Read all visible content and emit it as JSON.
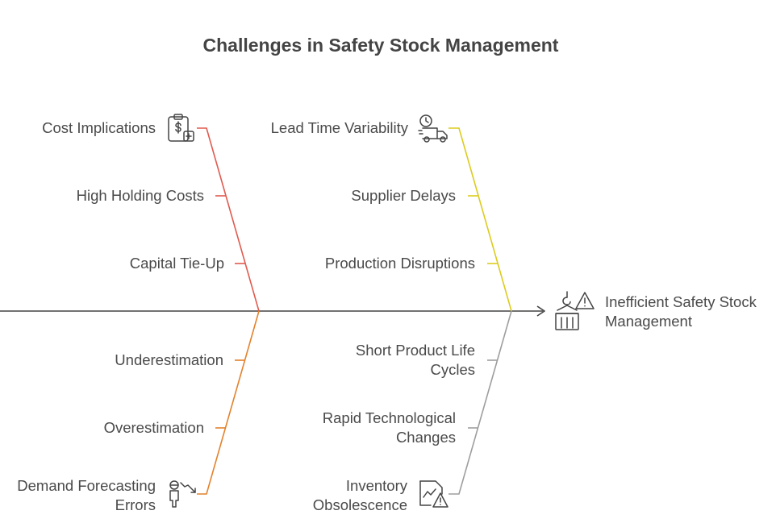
{
  "title": "Challenges in Safety Stock Management",
  "effect": {
    "line1": "Inefficient Safety Stock",
    "line2": "Management",
    "icon": "warehouse-warning-icon"
  },
  "colors": {
    "spine": "#444444",
    "cost": "#e05a4e",
    "lead_time": "#dccb1c",
    "demand": "#e3822d",
    "obsolescence": "#9e9e9e"
  },
  "categories": {
    "cost": {
      "label": "Cost Implications",
      "icon": "clipboard-dollar-icon",
      "causes": [
        "High Holding Costs",
        "Capital Tie-Up"
      ]
    },
    "lead_time": {
      "label": "Lead Time Variability",
      "icon": "delivery-truck-clock-icon",
      "causes": [
        "Supplier Delays",
        "Production Disruptions"
      ]
    },
    "demand": {
      "label_line1": "Demand Forecasting",
      "label_line2": "Errors",
      "icon": "forecast-person-icon",
      "causes": [
        "Underestimation",
        "Overestimation"
      ]
    },
    "obsolescence": {
      "label_line1": "Inventory",
      "label_line2": "Obsolescence",
      "icon": "chart-warning-icon",
      "causes": [
        {
          "line1": "Short Product Life",
          "line2": "Cycles"
        },
        {
          "line1": "Rapid Technological",
          "line2": "Changes"
        }
      ]
    }
  }
}
